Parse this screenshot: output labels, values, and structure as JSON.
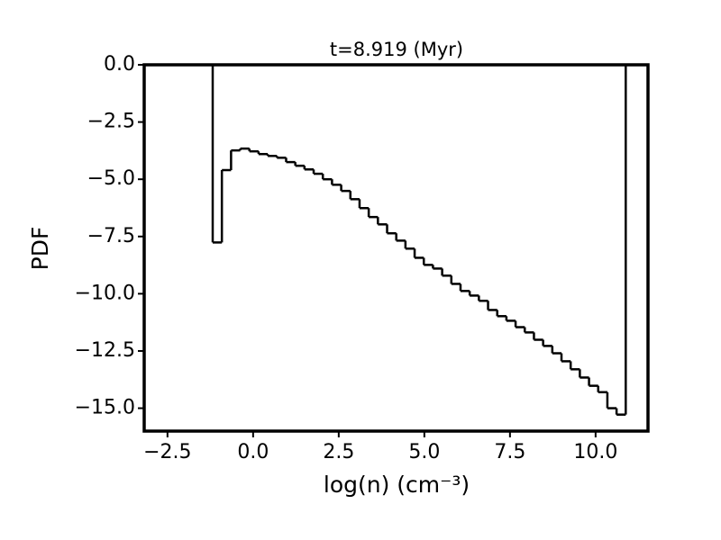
{
  "chart_data": {
    "type": "histogram",
    "title": "t=8.919 (Myr)",
    "xlabel": "log(n) (cm⁻³)",
    "ylabel": "PDF",
    "bins": [
      -1.18,
      -0.912,
      -0.644,
      -0.376,
      -0.108,
      0.16,
      0.428,
      0.696,
      0.964,
      1.232,
      1.5,
      1.768,
      2.036,
      2.304,
      2.572,
      2.84,
      3.108,
      3.376,
      3.644,
      3.912,
      4.18,
      4.448,
      4.716,
      4.984,
      5.252,
      5.52,
      5.788,
      6.056,
      6.324,
      6.592,
      6.86,
      7.128,
      7.396,
      7.664,
      7.932,
      8.2,
      8.468,
      8.736,
      9.004,
      9.272,
      9.54,
      9.808,
      10.076,
      10.344,
      10.612,
      10.88
    ],
    "values": [
      -7.76,
      -4.6,
      -3.74,
      -3.66,
      -3.78,
      -3.9,
      -3.98,
      -4.06,
      -4.25,
      -4.41,
      -4.57,
      -4.76,
      -5.0,
      -5.24,
      -5.51,
      -5.87,
      -6.26,
      -6.65,
      -6.97,
      -7.36,
      -7.68,
      -8.03,
      -8.43,
      -8.74,
      -8.9,
      -9.21,
      -9.57,
      -9.88,
      -10.08,
      -10.31,
      -10.71,
      -10.98,
      -11.18,
      -11.46,
      -11.69,
      -12.01,
      -12.28,
      -12.6,
      -12.95,
      -13.3,
      -13.66,
      -14.02,
      -14.3,
      -15.0,
      -15.28
    ],
    "color": "#000000",
    "xlim": [
      -3.18,
      11.53
    ],
    "ylim": [
      -16,
      0
    ],
    "xticks": [
      {
        "value": -2.5,
        "label": "−2.5"
      },
      {
        "value": 0,
        "label": "0.0"
      },
      {
        "value": 2.5,
        "label": "2.5"
      },
      {
        "value": 5,
        "label": "5.0"
      },
      {
        "value": 7.5,
        "label": "7.5"
      },
      {
        "value": 10,
        "label": "10.0"
      }
    ],
    "yticks": [
      {
        "value": 0,
        "label": "0.0"
      },
      {
        "value": -2.5,
        "label": "−2.5"
      },
      {
        "value": -5,
        "label": "−5.0"
      },
      {
        "value": -7.5,
        "label": "−7.5"
      },
      {
        "value": -10,
        "label": "−10.0"
      },
      {
        "value": -12.5,
        "label": "−12.5"
      },
      {
        "value": -15,
        "label": "−15.0"
      }
    ]
  }
}
